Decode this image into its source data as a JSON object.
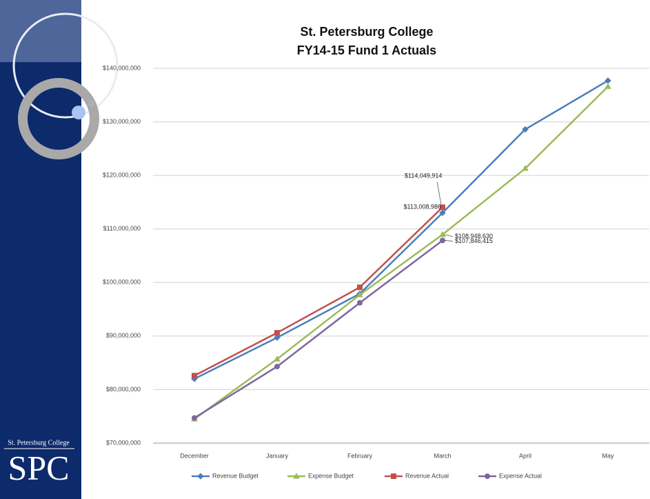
{
  "branding": {
    "college": "St. Petersburg College",
    "logo": "SPC"
  },
  "chart_data": {
    "type": "line",
    "title": "St. Petersburg College",
    "subtitle": "FY14-15 Fund 1 Actuals",
    "categories": [
      "December",
      "January",
      "February",
      "March",
      "April",
      "May"
    ],
    "series": [
      {
        "name": "Revenue Budget",
        "color": "#4a7ebb",
        "marker": "diamond",
        "values": [
          82000000,
          89700000,
          97900000,
          113008986,
          128600000,
          137700000
        ],
        "value_labels": [
          null,
          null,
          null,
          "$113,008,986",
          null,
          null
        ]
      },
      {
        "name": "Expense Budget",
        "color": "#9bbb59",
        "marker": "triangle",
        "values": [
          74500000,
          85700000,
          97700000,
          108948630,
          121300000,
          136600000
        ],
        "value_labels": [
          null,
          null,
          null,
          "$108,948,630",
          null,
          null
        ]
      },
      {
        "name": "Revenue Actual",
        "color": "#c0504d",
        "marker": "square",
        "values": [
          82600000,
          90600000,
          99100000,
          114049914,
          null,
          null
        ],
        "value_labels": [
          null,
          null,
          null,
          "$114,049,914",
          null,
          null
        ]
      },
      {
        "name": "Expense Actual",
        "color": "#8064a2",
        "marker": "circle",
        "values": [
          74700000,
          84300000,
          96200000,
          107846415,
          null,
          null
        ],
        "value_labels": [
          null,
          null,
          null,
          "$107,846,415",
          null,
          null
        ]
      }
    ],
    "ylim": [
      70000000,
      140000000
    ],
    "yticks": [
      {
        "value": 70000000,
        "label": "$70,000,000"
      },
      {
        "value": 80000000,
        "label": "$80,000,000"
      },
      {
        "value": 90000000,
        "label": "$90,000,000"
      },
      {
        "value": 100000000,
        "label": "$100,000,000"
      },
      {
        "value": 110000000,
        "label": "$110,000,000"
      },
      {
        "value": 120000000,
        "label": "$120,000,000"
      },
      {
        "value": 130000000,
        "label": "$130,000,000"
      },
      {
        "value": 140000000,
        "label": "$140,000,000"
      }
    ],
    "grid": true,
    "legend": "bottom"
  }
}
